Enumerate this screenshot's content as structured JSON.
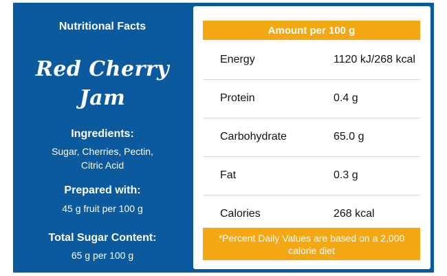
{
  "left": {
    "title": "Nutritional Facts",
    "product_line1": "Red Cherry",
    "product_line2": "Jam",
    "ingredients_heading": "Ingredients:",
    "ingredients_text": "Sugar, Cherries, Pectin, Citric Acid",
    "prepared_heading": "Prepared with:",
    "prepared_text": "45 g fruit per 100 g",
    "sugar_heading": "Total Sugar Content:",
    "sugar_text": "65 g per 100 g"
  },
  "table": {
    "header": "Amount per 100 g",
    "rows": [
      {
        "name": "Energy",
        "value": "1120 kJ/268 kcal"
      },
      {
        "name": "Protein",
        "value": "0.4 g"
      },
      {
        "name": "Carbohydrate",
        "value": "65.0 g"
      },
      {
        "name": "Fat",
        "value": "0.3 g"
      },
      {
        "name": "Calories",
        "value": "268 kcal"
      }
    ],
    "footnote": "*Percent Daily Values are based on a 2,000 calorie diet"
  },
  "colors": {
    "panel_blue": "#0c5a9e",
    "accent_orange": "#f3a712",
    "text_dark": "#111111"
  }
}
